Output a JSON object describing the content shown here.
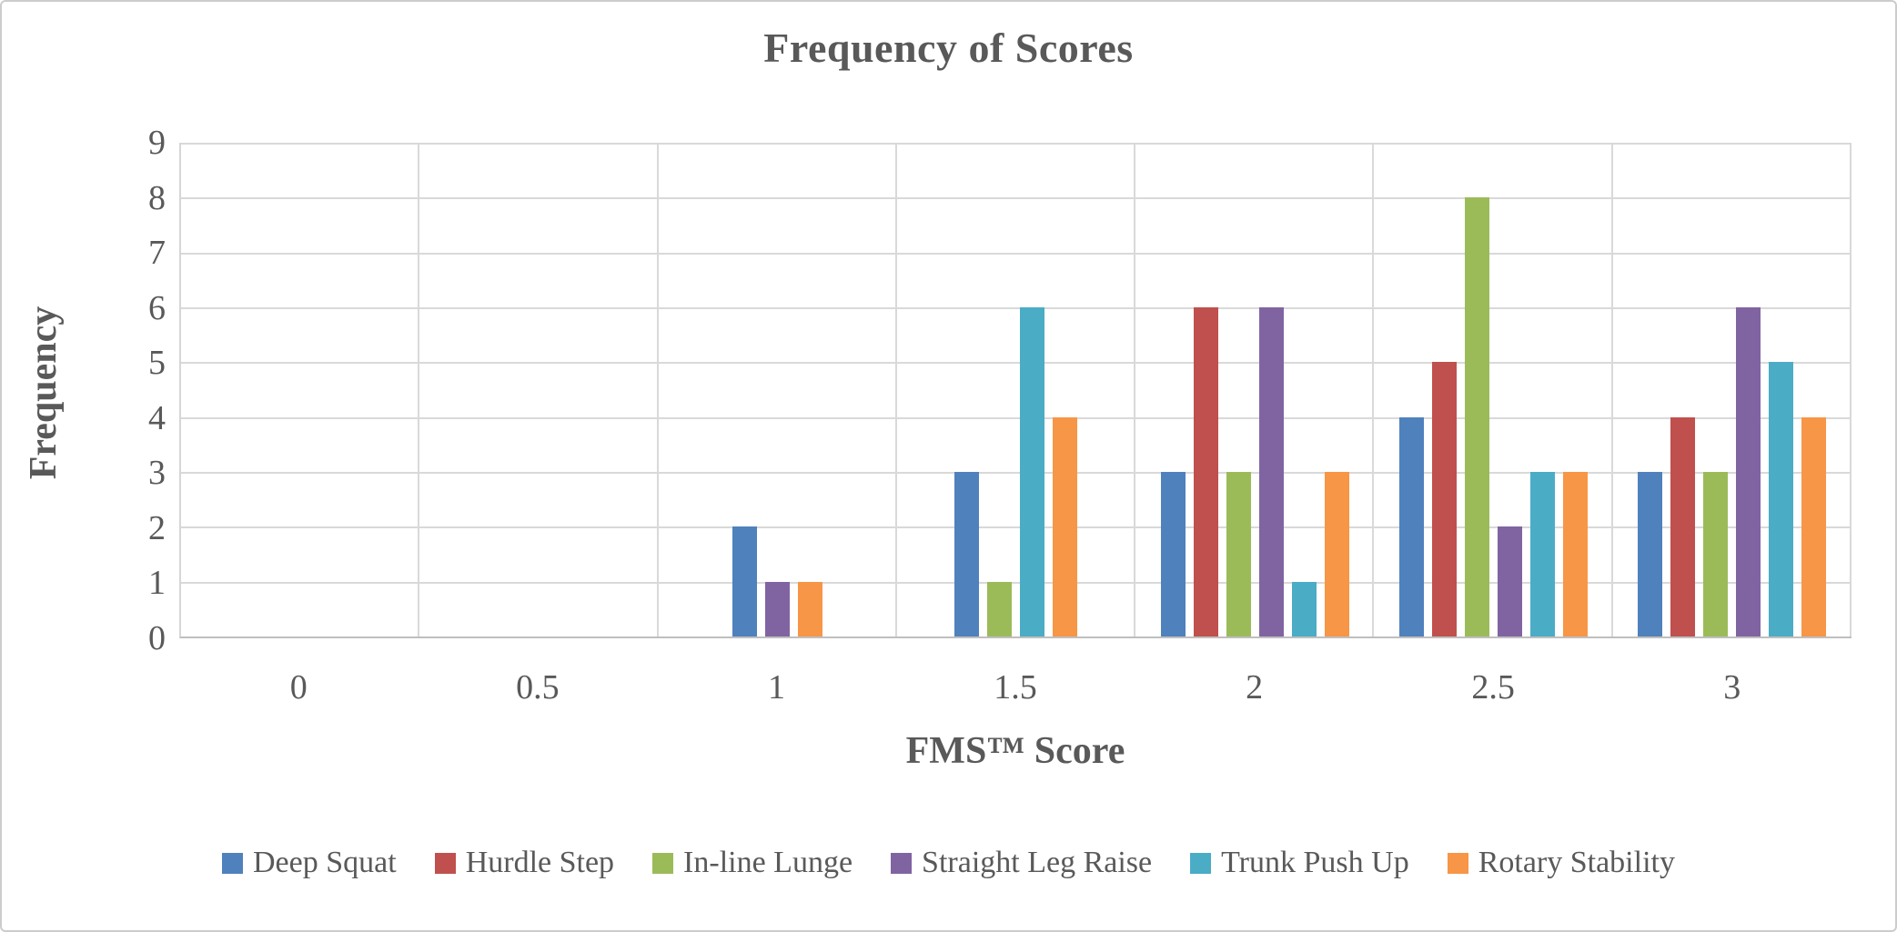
{
  "chart_data": {
    "type": "bar",
    "title": "Frequency of Scores",
    "xlabel": "FMS™ Score",
    "ylabel": "Frequency",
    "categories": [
      "0",
      "0.5",
      "1",
      "1.5",
      "2",
      "2.5",
      "3"
    ],
    "ylim": [
      0,
      9
    ],
    "ytick_step": 1,
    "grid": true,
    "legend_position": "bottom",
    "series": [
      {
        "name": "Deep Squat",
        "color": "#4F81BD",
        "values": [
          0,
          0,
          2,
          3,
          3,
          4,
          3
        ]
      },
      {
        "name": "Hurdle Step",
        "color": "#C0504D",
        "values": [
          0,
          0,
          0,
          0,
          6,
          5,
          4
        ]
      },
      {
        "name": "In-line Lunge",
        "color": "#9BBB59",
        "values": [
          0,
          0,
          0,
          1,
          3,
          8,
          3
        ]
      },
      {
        "name": "Straight Leg Raise",
        "color": "#8064A2",
        "values": [
          0,
          0,
          1,
          0,
          6,
          2,
          6
        ]
      },
      {
        "name": "Trunk Push Up",
        "color": "#4BACC6",
        "values": [
          0,
          0,
          0,
          6,
          1,
          3,
          5
        ]
      },
      {
        "name": "Rotary Stability",
        "color": "#F79646",
        "values": [
          0,
          0,
          1,
          4,
          3,
          3,
          4
        ]
      }
    ]
  },
  "colors": {
    "text": "#595959",
    "gridline": "#d9d9d9",
    "axis_line": "#bfbfbf",
    "background": "#ffffff",
    "border": "#cccccc"
  }
}
